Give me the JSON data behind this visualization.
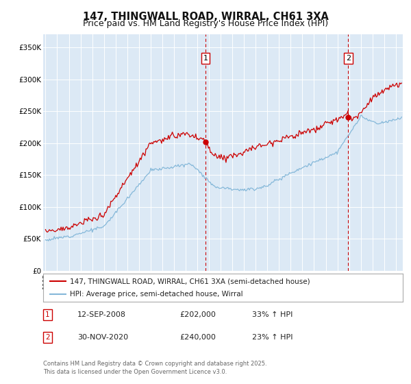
{
  "title": "147, THINGWALL ROAD, WIRRAL, CH61 3XA",
  "subtitle": "Price paid vs. HM Land Registry's House Price Index (HPI)",
  "ylabel_ticks": [
    "£0",
    "£50K",
    "£100K",
    "£150K",
    "£200K",
    "£250K",
    "£300K",
    "£350K"
  ],
  "ytick_vals": [
    0,
    50000,
    100000,
    150000,
    200000,
    250000,
    300000,
    350000
  ],
  "ylim": [
    0,
    370000
  ],
  "xlim_start": 1994.8,
  "xlim_end": 2025.6,
  "fig_bg_color": "#ffffff",
  "plot_bg_color": "#dce9f5",
  "grid_color": "#ffffff",
  "red_line_color": "#cc0000",
  "blue_line_color": "#85b8d9",
  "marker1_date": 2008.71,
  "marker2_date": 2020.92,
  "marker1_price": 202000,
  "marker2_price": 240000,
  "legend_line1": "147, THINGWALL ROAD, WIRRAL, CH61 3XA (semi-detached house)",
  "legend_line2": "HPI: Average price, semi-detached house, Wirral",
  "table_row1": [
    "1",
    "12-SEP-2008",
    "£202,000",
    "33% ↑ HPI"
  ],
  "table_row2": [
    "2",
    "30-NOV-2020",
    "£240,000",
    "23% ↑ HPI"
  ],
  "footer": "Contains HM Land Registry data © Crown copyright and database right 2025.\nThis data is licensed under the Open Government Licence v3.0."
}
